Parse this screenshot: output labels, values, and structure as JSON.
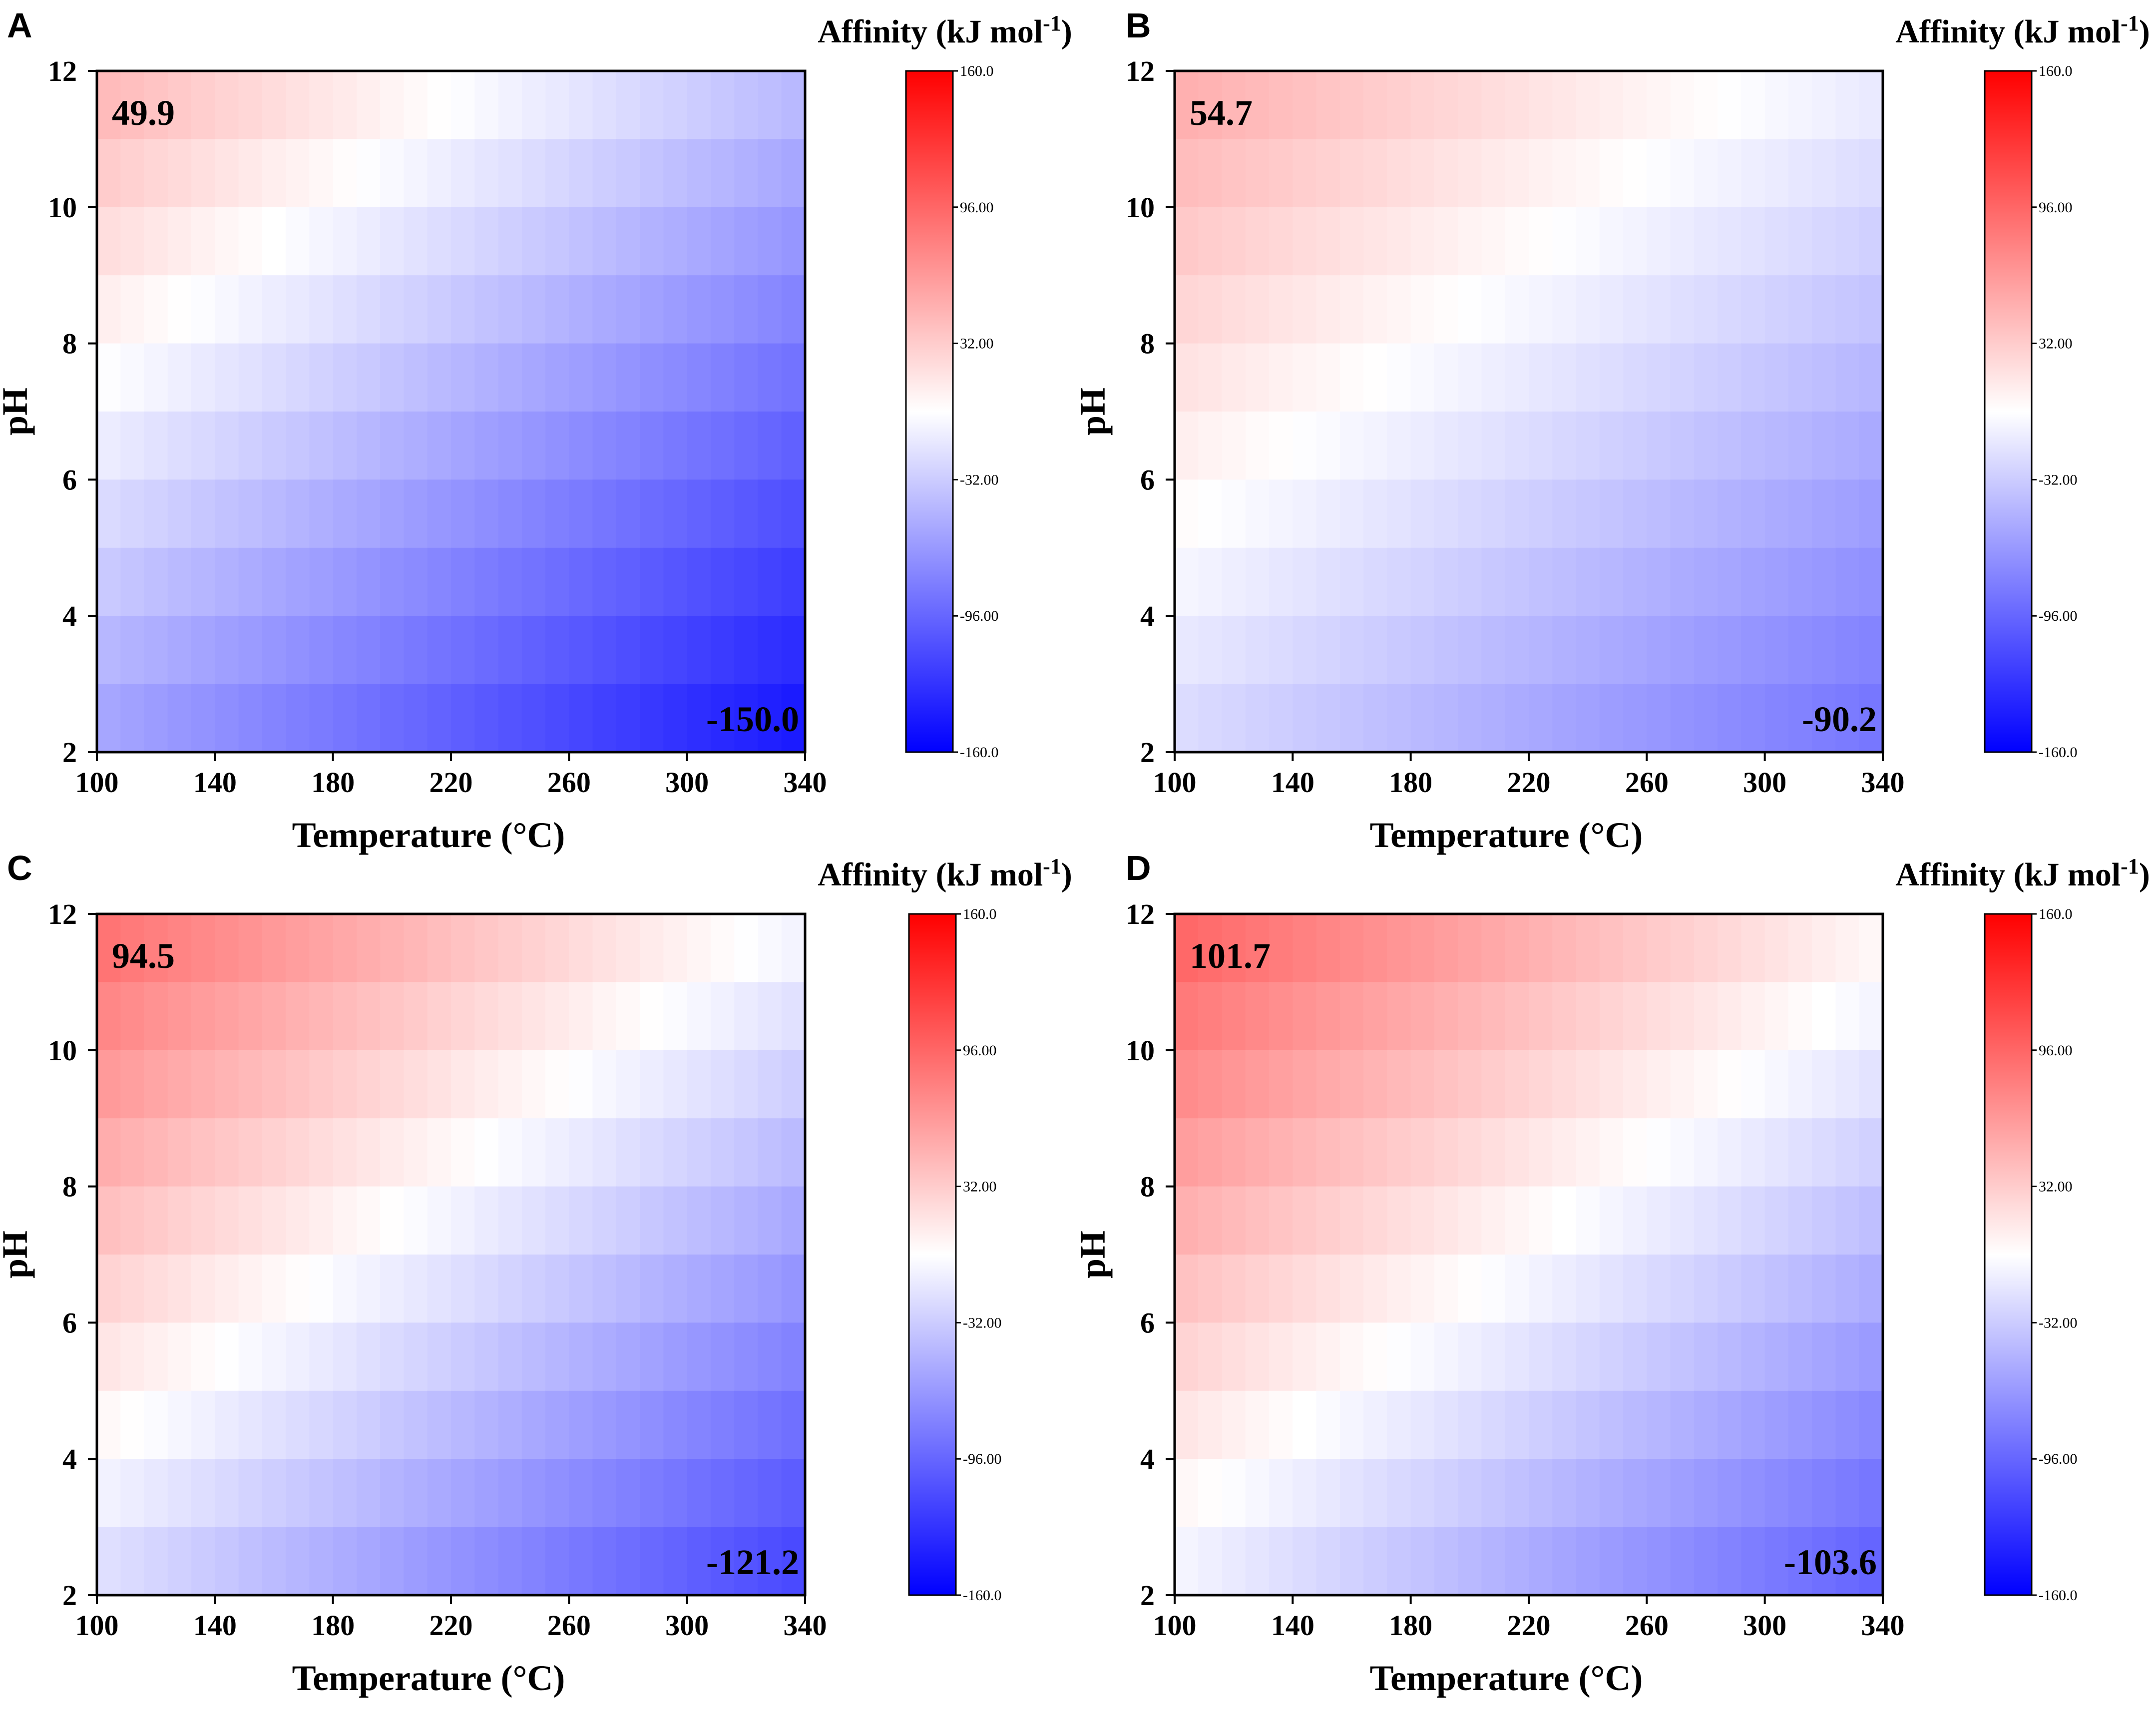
{
  "figure": {
    "colorbar": {
      "ticks": [
        "160.0",
        "96.00",
        "32.00",
        "-32.00",
        "-96.00",
        "-160.0"
      ],
      "tick_values": [
        160,
        96,
        32,
        -32,
        -96,
        -160
      ],
      "min": -160,
      "max": 160,
      "colors": {
        "low": "#0000ff",
        "mid": "#ffffff",
        "high": "#ff0000"
      }
    }
  },
  "chart_data": [
    {
      "type": "heatmap",
      "panel": "A",
      "legend_title": "Affinity (kJ mol",
      "legend_sup": "-1",
      "legend_close": ")",
      "xlabel": "Temperature (°C)",
      "ylabel": "pH",
      "xticks": [
        "100",
        "140",
        "180",
        "220",
        "260",
        "300",
        "340"
      ],
      "yticks": [
        "12",
        "10",
        "8",
        "6",
        "4",
        "2"
      ],
      "xlim": [
        100,
        340
      ],
      "ylim": [
        2,
        12
      ],
      "max_label": "49.9",
      "min_label": "-150.0",
      "max_value": 49.9,
      "min_value": -150.0
    },
    {
      "type": "heatmap",
      "panel": "B",
      "legend_title": "Affinity (kJ mol",
      "legend_sup": "-1",
      "legend_close": ")",
      "xlabel": "Temperature (°C)",
      "ylabel": "pH",
      "xticks": [
        "100",
        "140",
        "180",
        "220",
        "260",
        "300",
        "340"
      ],
      "yticks": [
        "12",
        "10",
        "8",
        "6",
        "4",
        "2"
      ],
      "xlim": [
        100,
        340
      ],
      "ylim": [
        2,
        12
      ],
      "max_label": "54.7",
      "min_label": "-90.2",
      "max_value": 54.7,
      "min_value": -90.2
    },
    {
      "type": "heatmap",
      "panel": "C",
      "legend_title": "Affinity (kJ mol",
      "legend_sup": "-1",
      "legend_close": ")",
      "xlabel": "Temperature (°C)",
      "ylabel": "pH",
      "xticks": [
        "100",
        "140",
        "180",
        "220",
        "260",
        "300",
        "340"
      ],
      "yticks": [
        "12",
        "10",
        "8",
        "6",
        "4",
        "2"
      ],
      "xlim": [
        100,
        340
      ],
      "ylim": [
        2,
        12
      ],
      "max_label": "94.5",
      "min_label": "-121.2",
      "max_value": 94.5,
      "min_value": -121.2
    },
    {
      "type": "heatmap",
      "panel": "D",
      "legend_title": "Affinity (kJ mol",
      "legend_sup": "-1",
      "legend_close": ")",
      "xlabel": "Temperature (°C)",
      "ylabel": "pH",
      "xticks": [
        "100",
        "140",
        "180",
        "220",
        "260",
        "300",
        "340"
      ],
      "yticks": [
        "12",
        "10",
        "8",
        "6",
        "4",
        "2"
      ],
      "xlim": [
        100,
        340
      ],
      "ylim": [
        2,
        12
      ],
      "max_label": "101.7",
      "min_label": "-103.6",
      "max_value": 101.7,
      "min_value": -103.6
    }
  ]
}
